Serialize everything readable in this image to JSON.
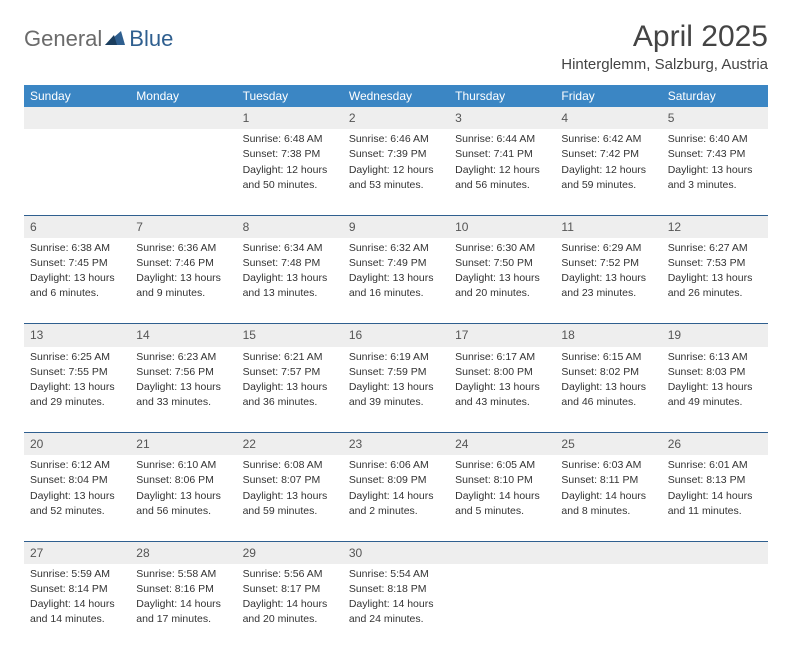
{
  "brand": {
    "part1": "General",
    "part2": "Blue"
  },
  "title": "April 2025",
  "location": "Hinterglemm, Salzburg, Austria",
  "style": {
    "header_bg": "#3b86c4",
    "header_text": "#ffffff",
    "daynum_bg": "#eeeeee",
    "row_border": "#2f5f8f",
    "body_text": "#333333",
    "month_fontsize": 30,
    "location_fontsize": 15,
    "th_fontsize": 12,
    "cell_fontsize": 10.5
  },
  "weekdays": [
    "Sunday",
    "Monday",
    "Tuesday",
    "Wednesday",
    "Thursday",
    "Friday",
    "Saturday"
  ],
  "weeks": [
    [
      null,
      null,
      {
        "n": "1",
        "sr": "Sunrise: 6:48 AM",
        "ss": "Sunset: 7:38 PM",
        "dl1": "Daylight: 12 hours",
        "dl2": "and 50 minutes."
      },
      {
        "n": "2",
        "sr": "Sunrise: 6:46 AM",
        "ss": "Sunset: 7:39 PM",
        "dl1": "Daylight: 12 hours",
        "dl2": "and 53 minutes."
      },
      {
        "n": "3",
        "sr": "Sunrise: 6:44 AM",
        "ss": "Sunset: 7:41 PM",
        "dl1": "Daylight: 12 hours",
        "dl2": "and 56 minutes."
      },
      {
        "n": "4",
        "sr": "Sunrise: 6:42 AM",
        "ss": "Sunset: 7:42 PM",
        "dl1": "Daylight: 12 hours",
        "dl2": "and 59 minutes."
      },
      {
        "n": "5",
        "sr": "Sunrise: 6:40 AM",
        "ss": "Sunset: 7:43 PM",
        "dl1": "Daylight: 13 hours",
        "dl2": "and 3 minutes."
      }
    ],
    [
      {
        "n": "6",
        "sr": "Sunrise: 6:38 AM",
        "ss": "Sunset: 7:45 PM",
        "dl1": "Daylight: 13 hours",
        "dl2": "and 6 minutes."
      },
      {
        "n": "7",
        "sr": "Sunrise: 6:36 AM",
        "ss": "Sunset: 7:46 PM",
        "dl1": "Daylight: 13 hours",
        "dl2": "and 9 minutes."
      },
      {
        "n": "8",
        "sr": "Sunrise: 6:34 AM",
        "ss": "Sunset: 7:48 PM",
        "dl1": "Daylight: 13 hours",
        "dl2": "and 13 minutes."
      },
      {
        "n": "9",
        "sr": "Sunrise: 6:32 AM",
        "ss": "Sunset: 7:49 PM",
        "dl1": "Daylight: 13 hours",
        "dl2": "and 16 minutes."
      },
      {
        "n": "10",
        "sr": "Sunrise: 6:30 AM",
        "ss": "Sunset: 7:50 PM",
        "dl1": "Daylight: 13 hours",
        "dl2": "and 20 minutes."
      },
      {
        "n": "11",
        "sr": "Sunrise: 6:29 AM",
        "ss": "Sunset: 7:52 PM",
        "dl1": "Daylight: 13 hours",
        "dl2": "and 23 minutes."
      },
      {
        "n": "12",
        "sr": "Sunrise: 6:27 AM",
        "ss": "Sunset: 7:53 PM",
        "dl1": "Daylight: 13 hours",
        "dl2": "and 26 minutes."
      }
    ],
    [
      {
        "n": "13",
        "sr": "Sunrise: 6:25 AM",
        "ss": "Sunset: 7:55 PM",
        "dl1": "Daylight: 13 hours",
        "dl2": "and 29 minutes."
      },
      {
        "n": "14",
        "sr": "Sunrise: 6:23 AM",
        "ss": "Sunset: 7:56 PM",
        "dl1": "Daylight: 13 hours",
        "dl2": "and 33 minutes."
      },
      {
        "n": "15",
        "sr": "Sunrise: 6:21 AM",
        "ss": "Sunset: 7:57 PM",
        "dl1": "Daylight: 13 hours",
        "dl2": "and 36 minutes."
      },
      {
        "n": "16",
        "sr": "Sunrise: 6:19 AM",
        "ss": "Sunset: 7:59 PM",
        "dl1": "Daylight: 13 hours",
        "dl2": "and 39 minutes."
      },
      {
        "n": "17",
        "sr": "Sunrise: 6:17 AM",
        "ss": "Sunset: 8:00 PM",
        "dl1": "Daylight: 13 hours",
        "dl2": "and 43 minutes."
      },
      {
        "n": "18",
        "sr": "Sunrise: 6:15 AM",
        "ss": "Sunset: 8:02 PM",
        "dl1": "Daylight: 13 hours",
        "dl2": "and 46 minutes."
      },
      {
        "n": "19",
        "sr": "Sunrise: 6:13 AM",
        "ss": "Sunset: 8:03 PM",
        "dl1": "Daylight: 13 hours",
        "dl2": "and 49 minutes."
      }
    ],
    [
      {
        "n": "20",
        "sr": "Sunrise: 6:12 AM",
        "ss": "Sunset: 8:04 PM",
        "dl1": "Daylight: 13 hours",
        "dl2": "and 52 minutes."
      },
      {
        "n": "21",
        "sr": "Sunrise: 6:10 AM",
        "ss": "Sunset: 8:06 PM",
        "dl1": "Daylight: 13 hours",
        "dl2": "and 56 minutes."
      },
      {
        "n": "22",
        "sr": "Sunrise: 6:08 AM",
        "ss": "Sunset: 8:07 PM",
        "dl1": "Daylight: 13 hours",
        "dl2": "and 59 minutes."
      },
      {
        "n": "23",
        "sr": "Sunrise: 6:06 AM",
        "ss": "Sunset: 8:09 PM",
        "dl1": "Daylight: 14 hours",
        "dl2": "and 2 minutes."
      },
      {
        "n": "24",
        "sr": "Sunrise: 6:05 AM",
        "ss": "Sunset: 8:10 PM",
        "dl1": "Daylight: 14 hours",
        "dl2": "and 5 minutes."
      },
      {
        "n": "25",
        "sr": "Sunrise: 6:03 AM",
        "ss": "Sunset: 8:11 PM",
        "dl1": "Daylight: 14 hours",
        "dl2": "and 8 minutes."
      },
      {
        "n": "26",
        "sr": "Sunrise: 6:01 AM",
        "ss": "Sunset: 8:13 PM",
        "dl1": "Daylight: 14 hours",
        "dl2": "and 11 minutes."
      }
    ],
    [
      {
        "n": "27",
        "sr": "Sunrise: 5:59 AM",
        "ss": "Sunset: 8:14 PM",
        "dl1": "Daylight: 14 hours",
        "dl2": "and 14 minutes."
      },
      {
        "n": "28",
        "sr": "Sunrise: 5:58 AM",
        "ss": "Sunset: 8:16 PM",
        "dl1": "Daylight: 14 hours",
        "dl2": "and 17 minutes."
      },
      {
        "n": "29",
        "sr": "Sunrise: 5:56 AM",
        "ss": "Sunset: 8:17 PM",
        "dl1": "Daylight: 14 hours",
        "dl2": "and 20 minutes."
      },
      {
        "n": "30",
        "sr": "Sunrise: 5:54 AM",
        "ss": "Sunset: 8:18 PM",
        "dl1": "Daylight: 14 hours",
        "dl2": "and 24 minutes."
      },
      null,
      null,
      null
    ]
  ]
}
